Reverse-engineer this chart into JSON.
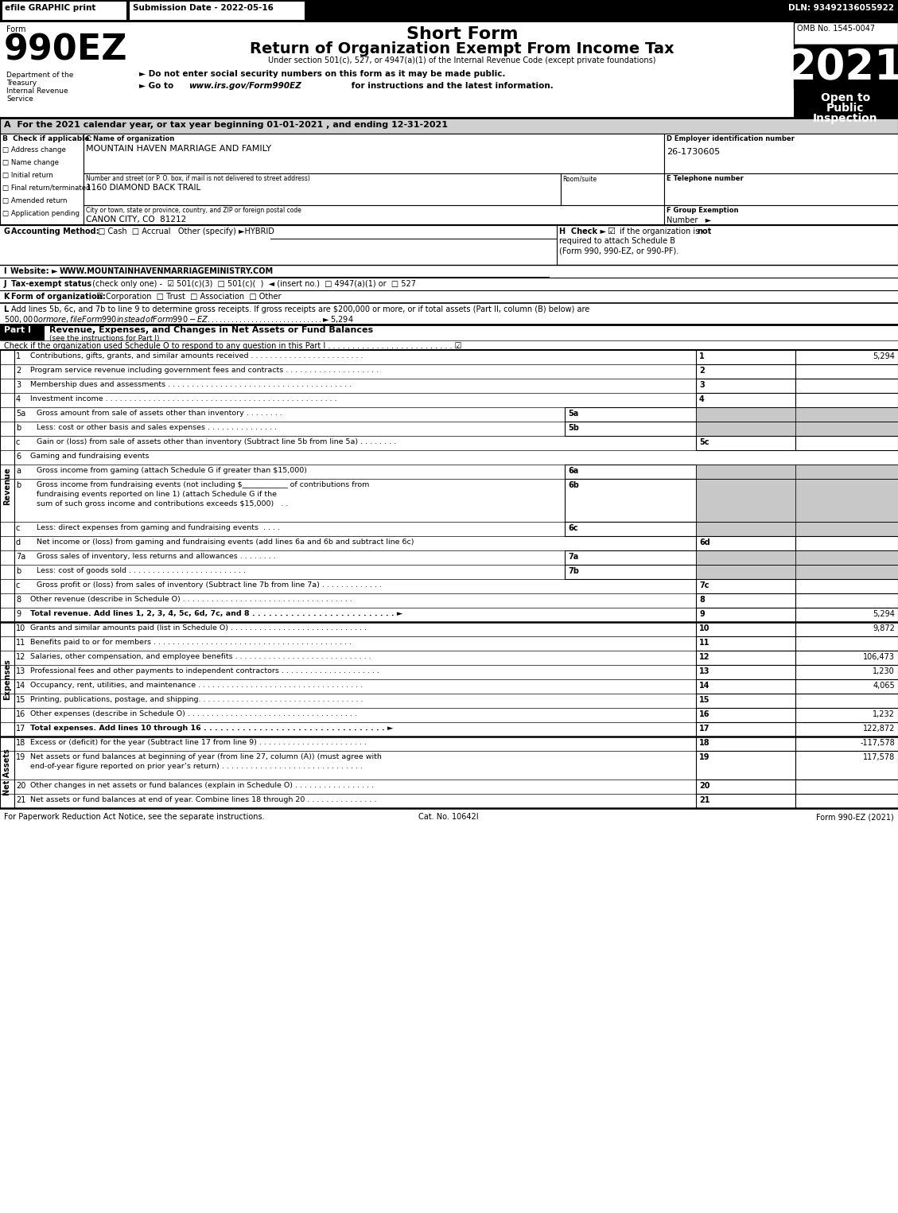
{
  "title_short": "Short Form",
  "title_main": "Return of Organization Exempt From Income Tax",
  "subtitle": "Under section 501(c), 527, or 4947(a)(1) of the Internal Revenue Code (except private foundations)",
  "year": "2021",
  "form_number": "990EZ",
  "omb": "OMB No. 1545-0047",
  "open_to": "Open to\nPublic\nInspection",
  "efile_text": "efile GRAPHIC print",
  "submission_date": "Submission Date - 2022-05-16",
  "dln": "DLN: 93492136055922",
  "dept1": "Department of the",
  "dept2": "Treasury",
  "dept3": "Internal Revenue",
  "dept4": "Service",
  "bullet1": "► Do not enter social security numbers on this form as it may be made public.",
  "bullet2": "► Go to www.irs.gov/Form990EZ for instructions and the latest information.",
  "bullet2_italic": "www.irs.gov/Form990EZ",
  "section_a": "A  For the 2021 calendar year, or tax year beginning 01-01-2021 , and ending 12-31-2021",
  "check_b": "B  Check if applicable:",
  "checks_b_items": [
    "Address change",
    "Name change",
    "Initial return",
    "Final return/terminated",
    "Amended return",
    "Application pending"
  ],
  "section_c_label": "C Name of organization",
  "org_name": "MOUNTAIN HAVEN MARRIAGE AND FAMILY",
  "street_label": "Number and street (or P. O. box, if mail is not delivered to street address)",
  "street_address": "1160 DIAMOND BACK TRAIL",
  "room_label": "Room/suite",
  "city_label": "City or town, state or province, country, and ZIP or foreign postal code",
  "city_address": "CANON CITY, CO  81212",
  "section_d_label": "D Employer identification number",
  "ein": "26-1730605",
  "section_e_label": "E Telephone number",
  "section_f_label": "F Group Exemption",
  "section_f2": "Number   ►",
  "revenue_label": "Revenue",
  "expenses_label": "Expenses",
  "net_assets_label": "Net Assets",
  "lines": [
    {
      "num": "1",
      "desc": "Contributions, gifts, grants, and similar amounts received . . . . . . . . . . . . . . . . . . . . . . . .",
      "line_num": "1",
      "value": "5,294",
      "shaded": false,
      "indent": 0
    },
    {
      "num": "2",
      "desc": "Program service revenue including government fees and contracts . . . . . . . . . . . . . . . . . . . .",
      "line_num": "2",
      "value": "",
      "shaded": false,
      "indent": 0
    },
    {
      "num": "3",
      "desc": "Membership dues and assessments . . . . . . . . . . . . . . . . . . . . . . . . . . . . . . . . . . . . . . .",
      "line_num": "3",
      "value": "",
      "shaded": false,
      "indent": 0
    },
    {
      "num": "4",
      "desc": "Investment income . . . . . . . . . . . . . . . . . . . . . . . . . . . . . . . . . . . . . . . . . . . . . . . . .",
      "line_num": "4",
      "value": "",
      "shaded": false,
      "indent": 0
    },
    {
      "num": "5a",
      "desc": "Gross amount from sale of assets other than inventory . . . . . . . .",
      "line_num": "5a",
      "value": "",
      "shaded": true,
      "indent": 1,
      "has_subbox": true
    },
    {
      "num": "b",
      "desc": "Less: cost or other basis and sales expenses . . . . . . . . . . . . . . .",
      "line_num": "5b",
      "value": "",
      "shaded": true,
      "indent": 1,
      "has_subbox": true
    },
    {
      "num": "c",
      "desc": "Gain or (loss) from sale of assets other than inventory (Subtract line 5b from line 5a) . . . . . . . .",
      "line_num": "5c",
      "value": "",
      "shaded": false,
      "indent": 1,
      "has_subbox": false
    },
    {
      "num": "6",
      "desc": "Gaming and fundraising events",
      "line_num": "",
      "value": "",
      "shaded": false,
      "indent": 0,
      "no_right_box": true
    },
    {
      "num": "a",
      "desc": "Gross income from gaming (attach Schedule G if greater than $15,000)",
      "line_num": "6a",
      "value": "",
      "shaded": true,
      "indent": 1,
      "has_subbox": true
    },
    {
      "num": "b",
      "desc": "Gross income from fundraising events (not including $____________ of contributions from\nfundraising events reported on line 1) (attach Schedule G if the\nsum of such gross income and contributions exceeds $15,000)   . .",
      "line_num": "6b",
      "value": "",
      "shaded": true,
      "indent": 1,
      "has_subbox": true
    },
    {
      "num": "c",
      "desc": "Less: direct expenses from gaming and fundraising events  . . . .",
      "line_num": "6c",
      "value": "",
      "shaded": true,
      "indent": 1,
      "has_subbox": true
    },
    {
      "num": "d",
      "desc": "Net income or (loss) from gaming and fundraising events (add lines 6a and 6b and subtract line 6c)",
      "line_num": "6d",
      "value": "",
      "shaded": false,
      "indent": 1,
      "has_subbox": false
    },
    {
      "num": "7a",
      "desc": "Gross sales of inventory, less returns and allowances . . . . . . . .",
      "line_num": "7a",
      "value": "",
      "shaded": true,
      "indent": 1,
      "has_subbox": true
    },
    {
      "num": "b",
      "desc": "Less: cost of goods sold . . . . . . . . . . . . . . . . . . . . . . . . .",
      "line_num": "7b",
      "value": "",
      "shaded": true,
      "indent": 1,
      "has_subbox": true
    },
    {
      "num": "c",
      "desc": "Gross profit or (loss) from sales of inventory (Subtract line 7b from line 7a) . . . . . . . . . . . . .",
      "line_num": "7c",
      "value": "",
      "shaded": false,
      "indent": 1,
      "has_subbox": false
    },
    {
      "num": "8",
      "desc": "Other revenue (describe in Schedule O) . . . . . . . . . . . . . . . . . . . . . . . . . . . . . . . . . . . .",
      "line_num": "8",
      "value": "",
      "shaded": false,
      "indent": 0
    },
    {
      "num": "9",
      "desc": "Total revenue. Add lines 1, 2, 3, 4, 5c, 6d, 7c, and 8 . . . . . . . . . . . . . . . . . . . . . . . . . . ►",
      "line_num": "9",
      "value": "5,294",
      "shaded": false,
      "indent": 0,
      "bold_desc": true
    }
  ],
  "expense_lines": [
    {
      "num": "10",
      "desc": "Grants and similar amounts paid (list in Schedule O) . . . . . . . . . . . . . . . . . . . . . . . . . . . . .",
      "line_num": "10",
      "value": "9,872"
    },
    {
      "num": "11",
      "desc": "Benefits paid to or for members . . . . . . . . . . . . . . . . . . . . . . . . . . . . . . . . . . . . . . . . . .",
      "line_num": "11",
      "value": ""
    },
    {
      "num": "12",
      "desc": "Salaries, other compensation, and employee benefits . . . . . . . . . . . . . . . . . . . . . . . . . . . . .",
      "line_num": "12",
      "value": "106,473"
    },
    {
      "num": "13",
      "desc": "Professional fees and other payments to independent contractors . . . . . . . . . . . . . . . . . . . . .",
      "line_num": "13",
      "value": "1,230"
    },
    {
      "num": "14",
      "desc": "Occupancy, rent, utilities, and maintenance . . . . . . . . . . . . . . . . . . . . . . . . . . . . . . . . . . .",
      "line_num": "14",
      "value": "4,065"
    },
    {
      "num": "15",
      "desc": "Printing, publications, postage, and shipping. . . . . . . . . . . . . . . . . . . . . . . . . . . . . . . . . . .",
      "line_num": "15",
      "value": ""
    },
    {
      "num": "16",
      "desc": "Other expenses (describe in Schedule O) . . . . . . . . . . . . . . . . . . . . . . . . . . . . . . . . . . . .",
      "line_num": "16",
      "value": "1,232"
    },
    {
      "num": "17",
      "desc": "Total expenses. Add lines 10 through 16 . . . . . . . . . . . . . . . . . . . . . . . . . . . . . . . . . ►",
      "line_num": "17",
      "value": "122,872",
      "bold_desc": true
    }
  ],
  "net_asset_lines": [
    {
      "num": "18",
      "desc": "Excess or (deficit) for the year (Subtract line 17 from line 9) . . . . . . . . . . . . . . . . . . . . . . .",
      "line_num": "18",
      "value": "-117,578"
    },
    {
      "num": "19",
      "desc": "Net assets or fund balances at beginning of year (from line 27, column (A)) (must agree with\nend-of-year figure reported on prior year’s return) . . . . . . . . . . . . . . . . . . . . . . . . . . . . . .",
      "line_num": "19",
      "value": "117,578"
    },
    {
      "num": "20",
      "desc": "Other changes in net assets or fund balances (explain in Schedule O) . . . . . . . . . . . . . . . . .",
      "line_num": "20",
      "value": ""
    },
    {
      "num": "21",
      "desc": "Net assets or fund balances at end of year. Combine lines 18 through 20 . . . . . . . . . . . . . . .",
      "line_num": "21",
      "value": ""
    }
  ],
  "footer1": "For Paperwork Reduction Act Notice, see the separate instructions.",
  "footer2": "Cat. No. 10642I",
  "footer3": "Form 990-EZ (2021)"
}
